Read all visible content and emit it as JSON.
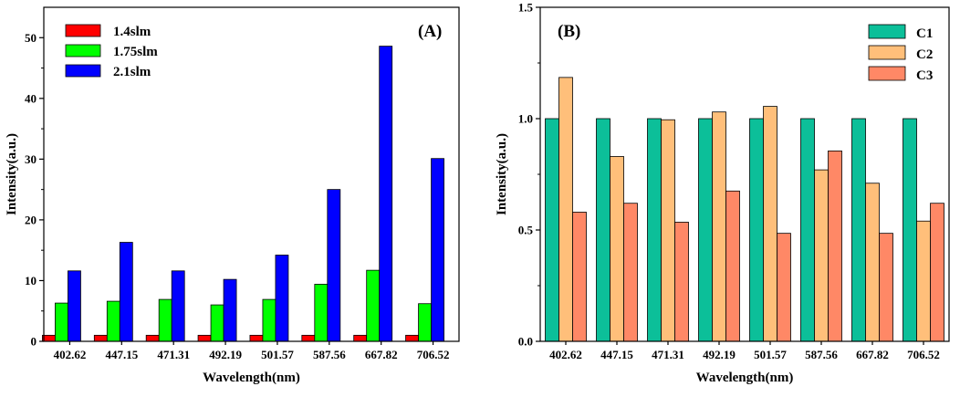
{
  "chart_data": [
    {
      "type": "bar",
      "panel_label": "(A)",
      "categories": [
        "402.62",
        "447.15",
        "471.31",
        "492.19",
        "501.57",
        "587.56",
        "667.82",
        "706.52"
      ],
      "series": [
        {
          "name": "1.4slm",
          "color": "#ff0000",
          "values": [
            1.0,
            1.0,
            1.0,
            1.0,
            1.0,
            1.0,
            1.0,
            1.0
          ]
        },
        {
          "name": "1.75slm",
          "color": "#00ff00",
          "values": [
            6.3,
            6.6,
            6.9,
            6.0,
            6.9,
            9.4,
            11.7,
            6.2
          ]
        },
        {
          "name": "2.1slm",
          "color": "#0000ff",
          "values": [
            11.6,
            16.3,
            11.6,
            10.2,
            14.2,
            25.0,
            48.6,
            30.1
          ]
        }
      ],
      "xlabel": "Wavelength(nm)",
      "ylabel": "Intensity(a.u.)",
      "ylim": [
        0,
        55
      ],
      "yticks": [
        0,
        10,
        20,
        30,
        40,
        50
      ],
      "ytick_labels": [
        "0",
        "10",
        "20",
        "30",
        "40",
        "50"
      ],
      "legend_position": "top-left"
    },
    {
      "type": "bar",
      "panel_label": "(B)",
      "categories": [
        "402.62",
        "447.15",
        "471.31",
        "492.19",
        "501.57",
        "587.56",
        "667.82",
        "706.52"
      ],
      "series": [
        {
          "name": "C1",
          "color": "#0cbf99",
          "values": [
            1.0,
            1.0,
            1.0,
            1.0,
            1.0,
            1.0,
            1.0,
            1.0
          ]
        },
        {
          "name": "C2",
          "color": "#ffbf7a",
          "values": [
            1.185,
            0.83,
            0.995,
            1.03,
            1.055,
            0.77,
            0.71,
            0.54
          ]
        },
        {
          "name": "C3",
          "color": "#ff8866",
          "values": [
            0.58,
            0.62,
            0.535,
            0.675,
            0.485,
            0.855,
            0.485,
            0.62
          ]
        }
      ],
      "xlabel": "Wavelength(nm)",
      "ylabel": "Intensity(a.u.)",
      "ylim": [
        0,
        1.5
      ],
      "yticks": [
        0,
        0.5,
        1.0,
        1.5
      ],
      "ytick_labels": [
        "0.0",
        "0.5",
        "1.0",
        "1.5"
      ],
      "legend_position": "top-right"
    }
  ]
}
